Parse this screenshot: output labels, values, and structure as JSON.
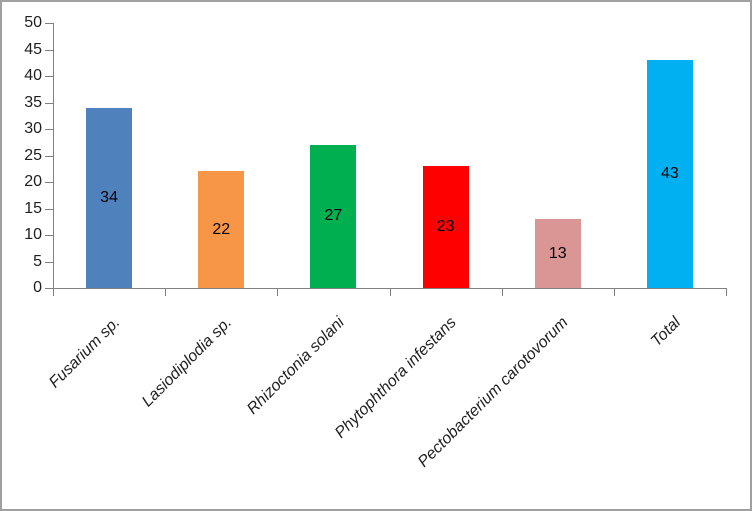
{
  "chart_data": {
    "type": "bar",
    "title": "",
    "xlabel": "",
    "ylabel": "",
    "categories": [
      "Fusarium sp.",
      "Lasiodiplodia sp.",
      "Rhizoctonia solani",
      "Phytophthora infestans",
      "Pectobacterium carotovorum",
      "Total"
    ],
    "values": [
      34,
      22,
      27,
      23,
      13,
      43
    ],
    "data_labels": [
      "34",
      "22",
      "27",
      "23",
      "13",
      "43"
    ],
    "bar_colors": [
      "#4F81BD",
      "#F79646",
      "#00B050",
      "#FF0000",
      "#D99694",
      "#00B0F0"
    ],
    "ylim": [
      0,
      50
    ],
    "ytick_step": 5,
    "ytick_labels": [
      "0",
      "5",
      "10",
      "15",
      "20",
      "25",
      "30",
      "35",
      "40",
      "45",
      "50"
    ],
    "grid": false,
    "legend_position": "none",
    "category_labels_italic": true,
    "category_label_rotation_deg": 45,
    "axis_color": "#808080",
    "text_color": "#1f1f1f",
    "frame_border_color": "#a0a0a0"
  }
}
